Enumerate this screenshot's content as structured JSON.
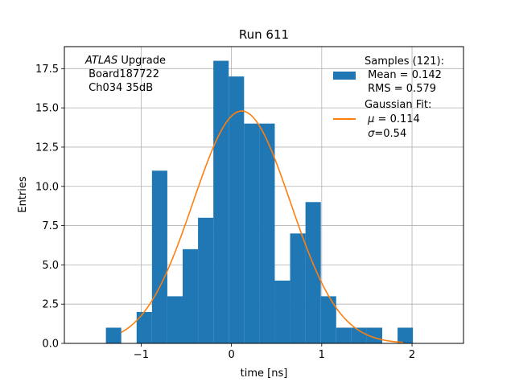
{
  "chart_data": {
    "type": "bar",
    "title": "Run 611",
    "xlabel": "time [ns]",
    "ylabel": "Entries",
    "xlim": [
      -1.85,
      2.57
    ],
    "ylim": [
      0,
      18.9
    ],
    "xticks": [
      -1,
      0,
      1,
      2
    ],
    "xtick_labels": [
      "−1",
      "0",
      "1",
      "2"
    ],
    "yticks": [
      0,
      2.5,
      5,
      7.5,
      10,
      12.5,
      15,
      17.5
    ],
    "ytick_labels": [
      "0.0",
      "2.5",
      "5.0",
      "7.5",
      "10.0",
      "12.5",
      "15.0",
      "17.5"
    ],
    "grid": true,
    "bar_color": "#1f77b4",
    "fit_color": "#ff7f0e",
    "bin_edges": [
      -1.39,
      -1.22,
      -1.05,
      -0.88,
      -0.71,
      -0.54,
      -0.37,
      -0.2,
      -0.03,
      0.14,
      0.31,
      0.48,
      0.65,
      0.82,
      0.99,
      1.16,
      1.33,
      1.5,
      1.67,
      1.84,
      2.01
    ],
    "values": [
      1,
      0,
      2,
      11,
      3,
      6,
      8,
      18,
      17,
      14,
      14,
      4,
      7,
      9,
      3,
      1,
      1,
      1,
      0,
      1
    ],
    "fit": {
      "mu": 0.114,
      "sigma": 0.54,
      "amplitude": 14.8,
      "x_range": [
        -1.22,
        1.9
      ]
    },
    "annotation": {
      "italic_part": "ATLAS",
      "rest_line1": " Upgrade",
      "line2": " Board187722",
      "line3": " Ch034 35dB"
    },
    "legend": {
      "position": "upper right",
      "samples_title": "Samples (121):",
      "samples_mean": " Mean = 0.142",
      "samples_rms": " RMS = 0.579",
      "fit_title": "Gaussian Fit:",
      "fit_mu_symbol": "μ",
      "fit_mu_text": " = 0.114",
      "fit_sigma_symbol": "σ",
      "fit_sigma_text": "=0.54"
    }
  }
}
